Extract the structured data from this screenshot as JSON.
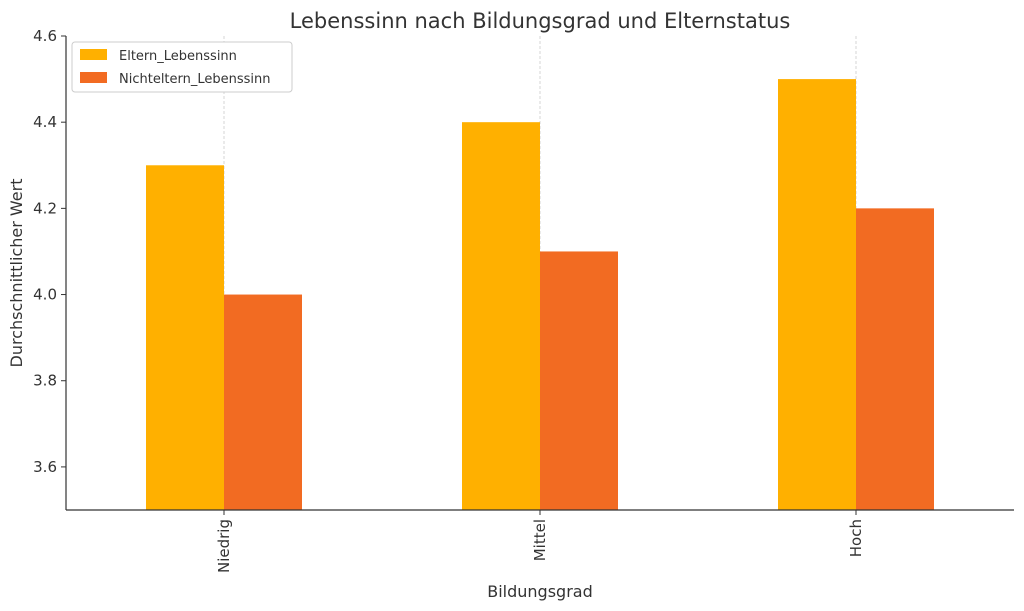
{
  "chart_data": {
    "type": "bar",
    "title": "Lebenssinn nach Bildungsgrad und Elternstatus",
    "xlabel": "Bildungsgrad",
    "ylabel": "Durchschnittlicher Wert",
    "categories": [
      "Niedrig",
      "Mittel",
      "Hoch"
    ],
    "series": [
      {
        "name": "Eltern_Lebenssinn",
        "values": [
          4.3,
          4.4,
          4.5
        ],
        "color": "#FFB000"
      },
      {
        "name": "Nichteltern_Lebenssinn",
        "values": [
          4.0,
          4.1,
          4.2
        ],
        "color": "#F26B22"
      }
    ],
    "ylim": [
      3.5,
      4.6
    ],
    "yticks": [
      "3.6",
      "3.8",
      "4.0",
      "4.2",
      "4.4",
      "4.6"
    ],
    "grid": "vertical",
    "legend_position": "top-left"
  }
}
